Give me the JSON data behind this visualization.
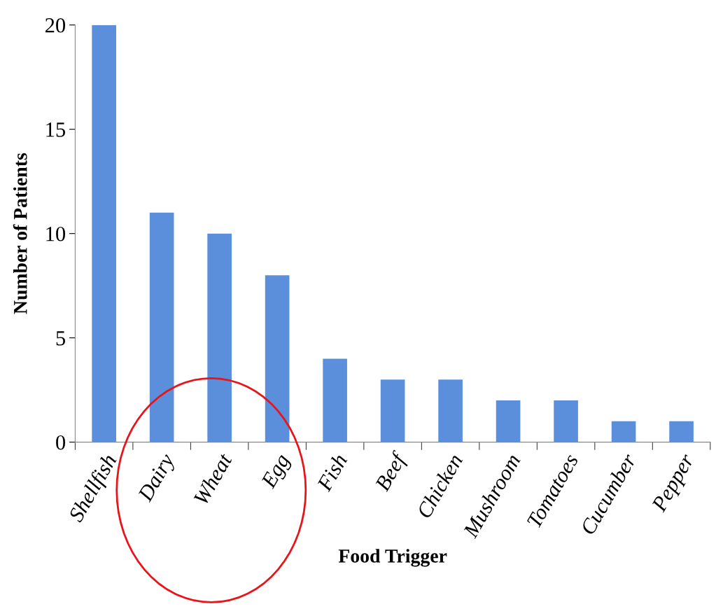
{
  "chart_data": {
    "type": "bar",
    "xlabel": "Food Trigger",
    "ylabel": "Number of Patients",
    "categories": [
      "Shellfish",
      "Dairy",
      "Wheat",
      "Egg",
      "Fish",
      "Beef",
      "Chicken",
      "Mushroom",
      "Tomatoes",
      "Cucumber",
      "Pepper"
    ],
    "values": [
      20,
      11,
      10,
      8,
      4,
      3,
      3,
      2,
      2,
      1,
      1
    ],
    "color": "#5b8fdc",
    "ylim": [
      0,
      20
    ],
    "yticks": [
      0,
      5,
      10,
      15,
      20
    ],
    "grid": false,
    "legend": false
  }
}
